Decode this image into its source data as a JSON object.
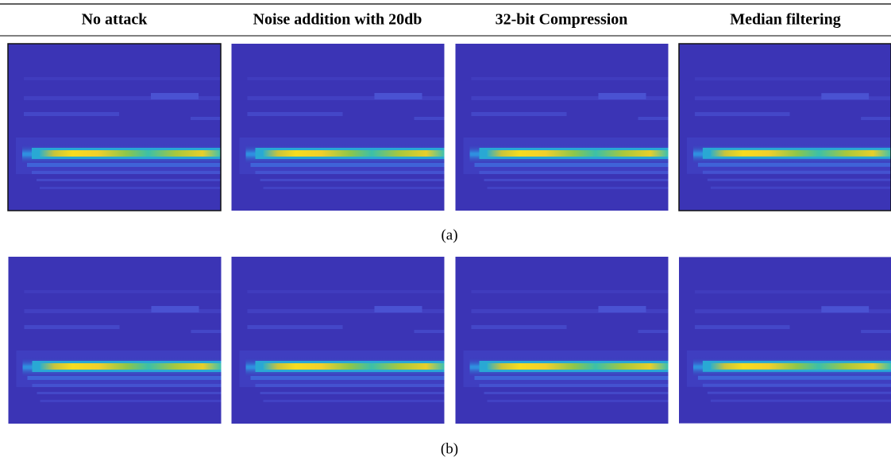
{
  "headers": [
    "No attack",
    "Noise addition with 20db",
    "32-bit Compression",
    "Median filtering"
  ],
  "captions": [
    "(a)",
    "(b)"
  ]
}
